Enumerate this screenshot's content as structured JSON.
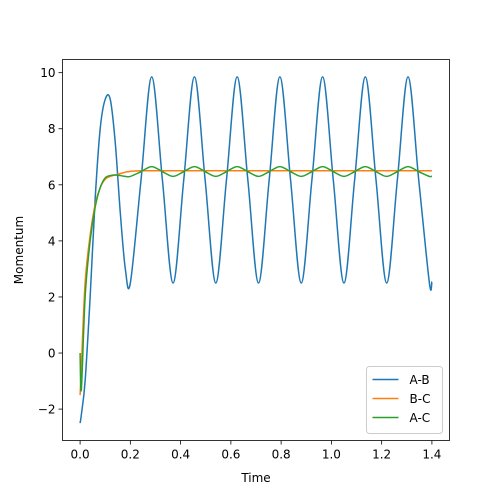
{
  "chart_data": {
    "type": "line",
    "xlabel": "Time",
    "ylabel": "Momentum",
    "x": [
      0,
      0.005,
      0.02,
      0.04,
      0.06,
      0.08,
      0.1,
      0.12,
      0.14,
      0.16,
      0.18,
      0.2,
      0.2425,
      0.285,
      0.3275,
      0.37,
      0.4125,
      0.455,
      0.4975,
      0.54,
      0.5825,
      0.625,
      0.6675,
      0.71,
      0.7525,
      0.795,
      0.8375,
      0.88,
      0.9225,
      0.965,
      1.0075,
      1.05,
      1.0925,
      1.135,
      1.1775,
      1.22,
      1.2625,
      1.305,
      1.3475,
      1.39,
      1.4
    ],
    "series": [
      {
        "name": "A-B",
        "color": "#1f77b4",
        "values": [
          -2.5,
          -2.2,
          -1.0,
          2.0,
          5.5,
          8.0,
          9.05,
          9.05,
          7.5,
          5.0,
          3.0,
          2.5,
          6.18,
          9.85,
          6.18,
          2.5,
          6.18,
          9.85,
          6.18,
          2.5,
          6.18,
          9.85,
          6.18,
          2.5,
          6.18,
          9.85,
          6.18,
          2.5,
          6.18,
          9.85,
          6.18,
          2.5,
          6.18,
          9.85,
          6.18,
          2.5,
          6.18,
          9.85,
          6.18,
          2.5,
          2.55
        ]
      },
      {
        "name": "B-C",
        "color": "#ff7f0e",
        "values": [
          -1.5,
          -0.5,
          2.5,
          4.2,
          5.3,
          5.9,
          6.2,
          6.3,
          6.35,
          6.4,
          6.45,
          6.48,
          6.5,
          6.5,
          6.5,
          6.5,
          6.5,
          6.5,
          6.5,
          6.5,
          6.5,
          6.5,
          6.5,
          6.5,
          6.5,
          6.5,
          6.5,
          6.5,
          6.5,
          6.5,
          6.5,
          6.5,
          6.5,
          6.5,
          6.5,
          6.5,
          6.5,
          6.5,
          6.5,
          6.5,
          6.5
        ]
      },
      {
        "name": "A-C",
        "color": "#2ca02c",
        "values": [
          0,
          -1.3,
          2.0,
          4.0,
          5.2,
          5.9,
          6.25,
          6.33,
          6.35,
          6.33,
          6.3,
          6.3,
          6.47,
          6.65,
          6.47,
          6.3,
          6.47,
          6.65,
          6.47,
          6.3,
          6.47,
          6.65,
          6.47,
          6.3,
          6.47,
          6.65,
          6.47,
          6.3,
          6.47,
          6.65,
          6.47,
          6.3,
          6.47,
          6.65,
          6.47,
          6.3,
          6.47,
          6.65,
          6.47,
          6.3,
          6.31
        ]
      }
    ],
    "xlim": [
      -0.07,
      1.47
    ],
    "ylim": [
      -3.12,
      10.47
    ],
    "xticks": [
      {
        "value": 0,
        "label": "0.0"
      },
      {
        "value": 0.2,
        "label": "0.2"
      },
      {
        "value": 0.4,
        "label": "0.4"
      },
      {
        "value": 0.6,
        "label": "0.6"
      },
      {
        "value": 0.8,
        "label": "0.8"
      },
      {
        "value": 1.0,
        "label": "1.0"
      },
      {
        "value": 1.2,
        "label": "1.2"
      },
      {
        "value": 1.4,
        "label": "1.4"
      }
    ],
    "yticks": [
      {
        "value": -2,
        "label": "−2"
      },
      0,
      2,
      4,
      6,
      8,
      10
    ],
    "grid": false,
    "legend": "lower right"
  }
}
